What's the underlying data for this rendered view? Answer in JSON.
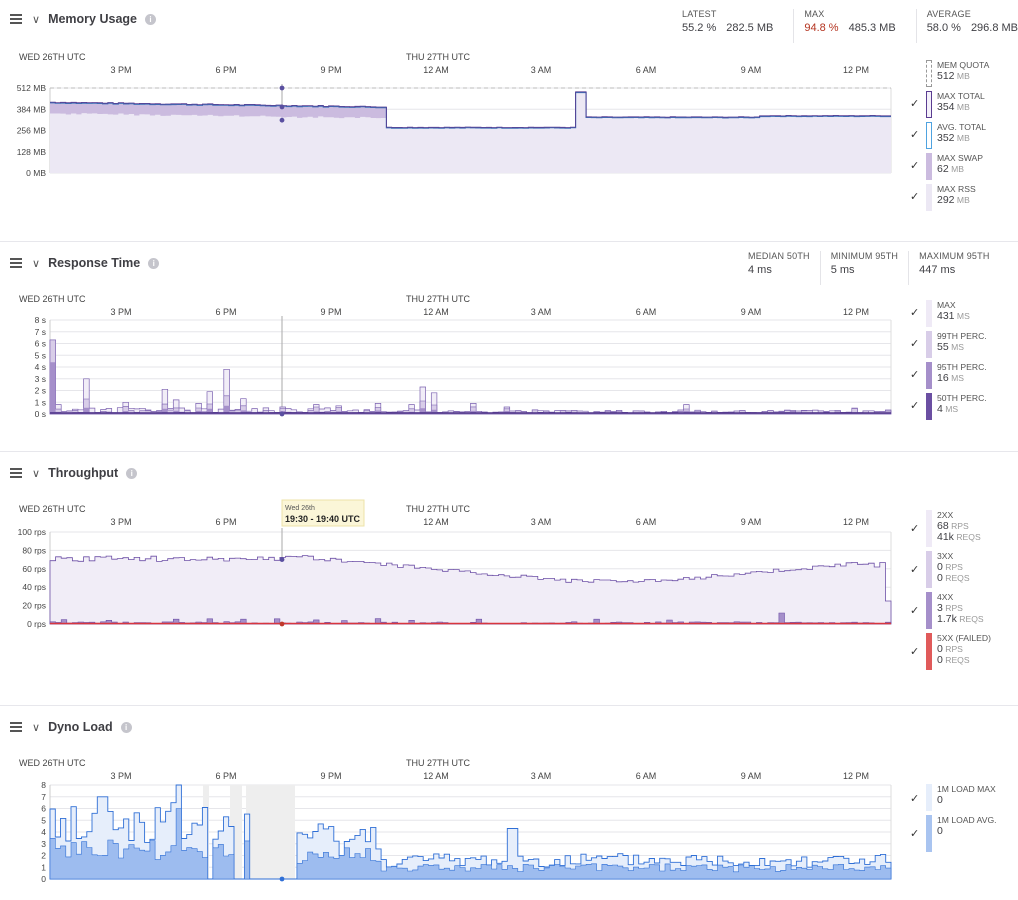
{
  "memory": {
    "title": "Memory Usage",
    "stats": [
      {
        "label": "LATEST",
        "v1": "55.2 %",
        "v2": "282.5 MB",
        "warn": false
      },
      {
        "label": "MAX",
        "v1": "94.8 %",
        "v2": "485.3 MB",
        "warn": true
      },
      {
        "label": "AVERAGE",
        "v1": "58.0 %",
        "v2": "296.8 MB",
        "warn": false
      }
    ],
    "day_labels": [
      "WED 26TH UTC",
      "THU 27TH UTC"
    ],
    "time_labels": [
      "3 PM",
      "6 PM",
      "9 PM",
      "12 AM",
      "3 AM",
      "6 AM",
      "9 AM",
      "12 PM"
    ],
    "y_labels": [
      "512 MB",
      "384 MB",
      "256 MB",
      "128 MB",
      "0 MB"
    ],
    "legend": [
      {
        "label": "MEM QUOTA",
        "value": "512",
        "unit": "MB",
        "color": "#ffffff",
        "border": "#999999",
        "dashed": true
      },
      {
        "label": "MAX TOTAL",
        "value": "354",
        "unit": "MB",
        "color": "#f4f0fa",
        "border": "#5a3c91",
        "dashed": false
      },
      {
        "label": "AVG. TOTAL",
        "value": "352",
        "unit": "MB",
        "color": "#ffffff",
        "border": "#4fa3e0",
        "dashed": false
      },
      {
        "label": "MAX SWAP",
        "value": "62",
        "unit": "MB",
        "color": "#cbbbdf",
        "border": "#cbbbdf",
        "dashed": false
      },
      {
        "label": "MAX RSS",
        "value": "292",
        "unit": "MB",
        "color": "#ece8f4",
        "border": "#ece8f4",
        "dashed": false
      }
    ]
  },
  "response": {
    "title": "Response Time",
    "stats": [
      {
        "label": "MEDIAN 50TH",
        "v1": "4 ms"
      },
      {
        "label": "MINIMUM 95TH",
        "v1": "5 ms"
      },
      {
        "label": "MAXIMUM 95TH",
        "v1": "447 ms"
      }
    ],
    "day_labels": [
      "WED 26TH UTC",
      "THU 27TH UTC"
    ],
    "time_labels": [
      "3 PM",
      "6 PM",
      "9 PM",
      "12 AM",
      "3 AM",
      "6 AM",
      "9 AM",
      "12 PM"
    ],
    "y_labels": [
      "8 s",
      "7 s",
      "6 s",
      "5 s",
      "4 s",
      "3 s",
      "2 s",
      "1 s",
      "0 s"
    ],
    "legend": [
      {
        "label": "MAX",
        "value": "431",
        "unit": "ms",
        "color": "#efeaf6"
      },
      {
        "label": "99TH PERC.",
        "value": "55",
        "unit": "ms",
        "color": "#d8cde8"
      },
      {
        "label": "95TH PERC.",
        "value": "16",
        "unit": "ms",
        "color": "#a58fca"
      },
      {
        "label": "50TH PERC.",
        "value": "4",
        "unit": "ms",
        "color": "#6b4fa2"
      }
    ]
  },
  "throughput": {
    "title": "Throughput",
    "tooltip": {
      "date": "Wed 26th",
      "range": "19:30 - 19:40 UTC"
    },
    "day_labels": [
      "WED 26TH UTC",
      "THU 27TH UTC"
    ],
    "time_labels": [
      "3 PM",
      "6 PM",
      "9 PM",
      "12 AM",
      "3 AM",
      "6 AM",
      "9 AM",
      "12 PM"
    ],
    "y_labels": [
      "100 rps",
      "80 rps",
      "60 rps",
      "40 rps",
      "20 rps",
      "0 rps"
    ],
    "legend": [
      {
        "label": "2XX",
        "rps": "68",
        "reqs": "41k",
        "color": "#efeaf6"
      },
      {
        "label": "3XX",
        "rps": "0",
        "reqs": "0",
        "color": "#d8cde8"
      },
      {
        "label": "4XX",
        "rps": "3",
        "reqs": "1.7k",
        "color": "#a58fca"
      },
      {
        "label": "5XX (FAILED)",
        "rps": "0",
        "reqs": "0",
        "color": "#e05a5a"
      }
    ],
    "units": {
      "rps": "rps",
      "reqs": "reqs"
    }
  },
  "dyno": {
    "title": "Dyno Load",
    "day_labels": [
      "WED 26TH UTC",
      "THU 27TH UTC"
    ],
    "time_labels": [
      "3 PM",
      "6 PM",
      "9 PM",
      "12 AM",
      "3 AM",
      "6 AM",
      "9 AM",
      "12 PM"
    ],
    "y_labels": [
      "8",
      "7",
      "6",
      "5",
      "4",
      "3",
      "2",
      "1",
      "0"
    ],
    "legend": [
      {
        "label": "1M LOAD MAX",
        "value": "0",
        "color": "#e6eefb"
      },
      {
        "label": "1M LOAD AVG.",
        "value": "0",
        "color": "#a9c4f0"
      }
    ]
  },
  "colors": {
    "grid": "#e6e6ea",
    "mem_fill": "#ece8f4",
    "mem_swap": "#cbbbdf",
    "mem_line": "#3b6fb6",
    "purple": "#5a3c91",
    "dyno_fill": "#9dbcef",
    "dyno_line": "#2f6fd6",
    "error": "#d9363e"
  }
}
